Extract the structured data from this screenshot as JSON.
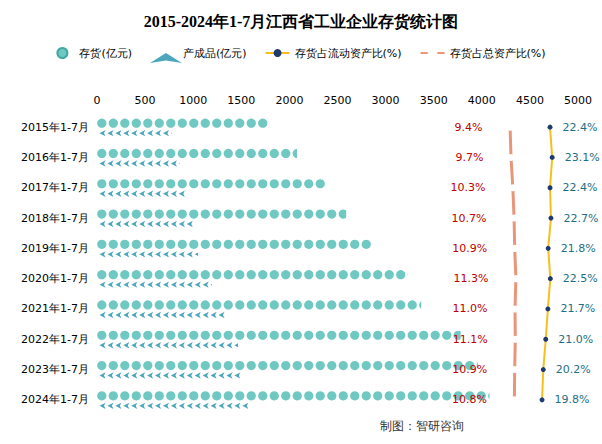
{
  "chart_data": {
    "type": "bar",
    "orientation": "horizontal",
    "title": "2015-2024年1-7月江西省工业企业存货统计图",
    "categories": [
      "2015年1-7月",
      "2016年1-7月",
      "2017年1-7月",
      "2018年1-7月",
      "2019年1-7月",
      "2020年1-7月",
      "2021年1-7月",
      "2022年1-7月",
      "2023年1-7月",
      "2024年1-7月"
    ],
    "ylim": [
      0,
      5000
    ],
    "yticks": [
      0,
      500,
      1000,
      1500,
      2000,
      2500,
      3000,
      3500,
      4000,
      4500,
      5000
    ],
    "y2lim": [
      -125,
      31.5
    ],
    "legend": "top",
    "series": [
      {
        "name": "存货(亿元)",
        "type": "bar",
        "marker": "circle",
        "color": "#6fc8c2",
        "values": [
          1780,
          2080,
          2370,
          2590,
          2850,
          3230,
          3370,
          3780,
          3960,
          4080
        ]
      },
      {
        "name": "产成品(亿元)",
        "type": "bar",
        "marker": "arrow",
        "color": "#4ea6bd",
        "values": [
          780,
          860,
          915,
          1000,
          1050,
          1195,
          1330,
          1465,
          1485,
          1590
        ]
      },
      {
        "name": "存货占流动资产比(%)",
        "type": "line",
        "axis": "y2",
        "marker": "circle",
        "color": "#f5c01f",
        "data_labels": true,
        "values": [
          22.4,
          23.1,
          22.4,
          22.7,
          21.8,
          22.5,
          21.7,
          21.0,
          20.2,
          19.8
        ],
        "value_labels": [
          "22.4%",
          "23.1%",
          "22.4%",
          "22.7%",
          "21.8%",
          "22.5%",
          "21.7%",
          "21.0%",
          "20.2%",
          "19.8%"
        ]
      },
      {
        "name": "存货占总资产比(%)",
        "type": "line",
        "axis": "y2",
        "marker": "circle",
        "color": "#e9957a",
        "data_labels": true,
        "values": [
          9.4,
          9.7,
          10.3,
          10.7,
          10.9,
          11.3,
          11.0,
          11.1,
          10.9,
          10.8
        ],
        "value_labels": [
          "9.4%",
          "9.7%",
          "10.3%",
          "10.7%",
          "10.9%",
          "11.3%",
          "11.0%",
          "11.1%",
          "10.9%",
          "10.8%"
        ]
      }
    ],
    "annotations": [
      "制图：智研咨询"
    ]
  }
}
